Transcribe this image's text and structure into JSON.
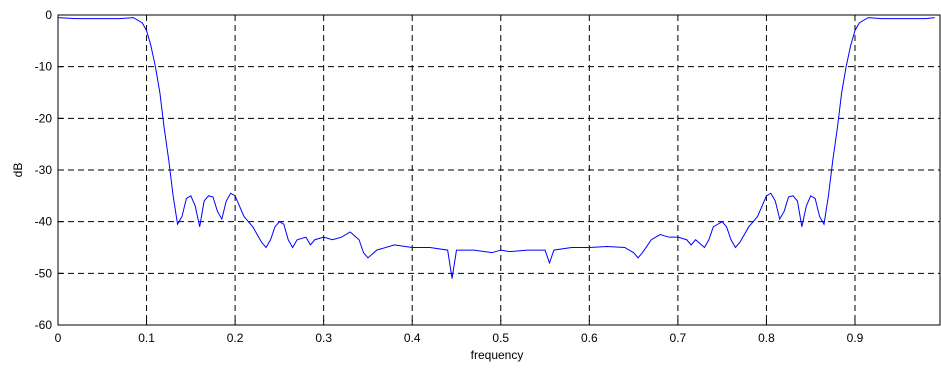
{
  "chart_data": {
    "type": "line",
    "xlabel": "frequency",
    "ylabel": "dB",
    "xlim": [
      0,
      0.996
    ],
    "ylim": [
      -60,
      0
    ],
    "xticks": [
      0,
      0.1,
      0.2,
      0.3,
      0.4,
      0.5,
      0.6,
      0.7,
      0.8,
      0.9
    ],
    "yticks": [
      0,
      -10,
      -20,
      -30,
      -40,
      -50,
      -60
    ],
    "grid": true,
    "series": [
      {
        "color": "#0000ff",
        "x": [
          0,
          0.02,
          0.05,
          0.07,
          0.085,
          0.095,
          0.1,
          0.105,
          0.11,
          0.115,
          0.12,
          0.125,
          0.13,
          0.135,
          0.14,
          0.145,
          0.15,
          0.155,
          0.16,
          0.165,
          0.17,
          0.175,
          0.18,
          0.185,
          0.19,
          0.195,
          0.2,
          0.205,
          0.21,
          0.215,
          0.22,
          0.225,
          0.23,
          0.235,
          0.24,
          0.245,
          0.25,
          0.255,
          0.26,
          0.265,
          0.27,
          0.28,
          0.285,
          0.29,
          0.3,
          0.31,
          0.32,
          0.33,
          0.34,
          0.345,
          0.35,
          0.36,
          0.38,
          0.4,
          0.42,
          0.44,
          0.445,
          0.45,
          0.47,
          0.49,
          0.5,
          0.51,
          0.53,
          0.55,
          0.555,
          0.56,
          0.58,
          0.6,
          0.62,
          0.64,
          0.65,
          0.655,
          0.66,
          0.67,
          0.68,
          0.69,
          0.7,
          0.71,
          0.715,
          0.72,
          0.73,
          0.735,
          0.74,
          0.745,
          0.75,
          0.755,
          0.76,
          0.765,
          0.77,
          0.775,
          0.78,
          0.785,
          0.79,
          0.795,
          0.8,
          0.805,
          0.81,
          0.815,
          0.82,
          0.825,
          0.83,
          0.835,
          0.84,
          0.845,
          0.85,
          0.855,
          0.86,
          0.865,
          0.87,
          0.875,
          0.88,
          0.885,
          0.89,
          0.895,
          0.9,
          0.905,
          0.915,
          0.93,
          0.95,
          0.98,
          0.99
        ],
        "values": [
          -0.5,
          -0.7,
          -0.7,
          -0.7,
          -0.5,
          -1.5,
          -3,
          -6,
          -10,
          -15,
          -22,
          -28,
          -35,
          -40.5,
          -39,
          -35.5,
          -35,
          -37,
          -41,
          -36,
          -35,
          -35.2,
          -38,
          -39.5,
          -36,
          -34.5,
          -35,
          -37,
          -39,
          -40,
          -41,
          -42.5,
          -44,
          -45,
          -43.5,
          -41,
          -40,
          -40.5,
          -43.5,
          -45,
          -43.5,
          -43,
          -44.5,
          -43.5,
          -43,
          -43.5,
          -43,
          -42,
          -43.5,
          -46,
          -47,
          -45.5,
          -44.5,
          -45,
          -45,
          -45.5,
          -51,
          -45.5,
          -45.5,
          -46,
          -45.5,
          -45.8,
          -45.5,
          -45.5,
          -48,
          -45.5,
          -45,
          -45,
          -44.8,
          -45,
          -46,
          -47,
          -46,
          -43.5,
          -42.5,
          -43,
          -43,
          -43.5,
          -44.5,
          -43.5,
          -45,
          -43.5,
          -41,
          -40.5,
          -40,
          -41,
          -43.5,
          -45,
          -44,
          -42.5,
          -41,
          -40,
          -39,
          -37,
          -35,
          -34.5,
          -36,
          -39.5,
          -38,
          -35.2,
          -35,
          -36,
          -41,
          -37,
          -35,
          -35.5,
          -39,
          -40.5,
          -35,
          -28,
          -22,
          -15,
          -10,
          -6,
          -3,
          -1.5,
          -0.5,
          -0.7,
          -0.7,
          -0.7,
          -0.5
        ]
      }
    ]
  }
}
